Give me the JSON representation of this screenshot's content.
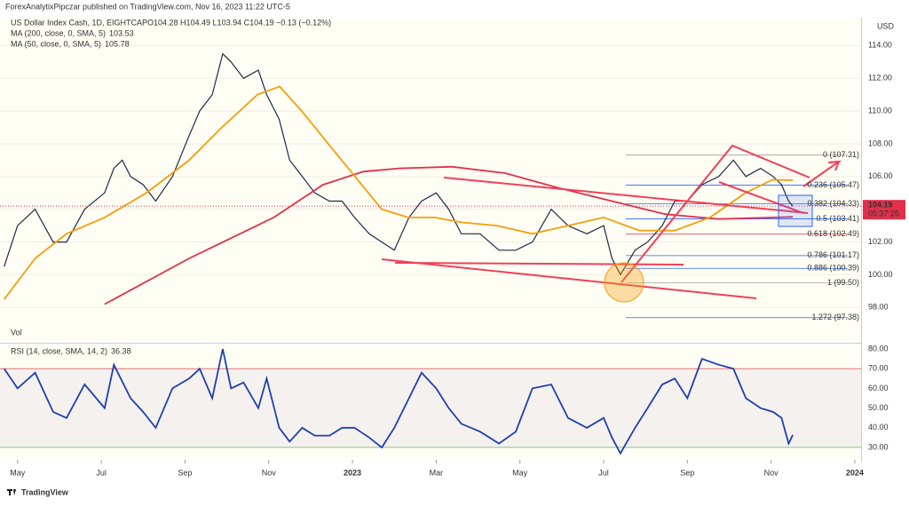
{
  "header": {
    "publisher": "ForexAnalytixPipczar published on TradingView.com, Nov 16, 2023 11:22 UTC-5",
    "symbol": "US Dollar Index Cash, 1D, EIGHTCAP",
    "quote": "O104.28 H104.49 L103.94 C104.19 −0.13 (−0.12%)",
    "currency": "USD",
    "countdown": "05:37:25",
    "volume_label": "Vol",
    "footer": "TradingView"
  },
  "chart_data": [
    {
      "type": "line",
      "x": [
        3.68,
        4.0,
        4.42,
        4.85,
        5.17,
        5.6,
        6.08,
        6.3,
        6.5,
        6.7,
        7.0,
        7.3,
        7.7,
        8.1,
        8.35,
        8.65,
        8.9,
        9.1,
        9.4,
        9.75,
        9.95,
        10.25,
        10.5,
        10.8,
        11.1,
        11.45,
        11.75,
        12.05,
        12.4,
        12.7,
        13.0,
        13.35,
        13.65,
        14.0,
        14.3,
        14.6,
        15.05,
        15.5,
        15.9,
        16.3,
        16.75,
        17.15,
        17.6,
        18.0,
        18.2,
        18.4,
        18.75,
        19.05,
        19.4,
        19.7,
        20.0,
        20.35,
        20.75,
        21.1,
        21.4,
        21.75,
        22.05,
        22.25,
        22.42,
        22.52
      ],
      "series": [
        {
          "name": "US Dollar Index Cash",
          "color": "#1f2a44",
          "values": [
            100.5,
            103,
            104,
            102,
            102,
            104,
            105,
            106.5,
            107,
            106,
            105.5,
            104.5,
            106,
            108.5,
            110,
            111,
            113.5,
            113,
            112,
            112.5,
            111,
            109.5,
            107,
            106,
            105,
            104.5,
            104.5,
            103.5,
            102.5,
            102,
            101.5,
            103.5,
            104.5,
            105,
            104,
            102.5,
            102.5,
            101.5,
            101.5,
            102,
            104,
            103,
            102.5,
            103,
            101,
            100,
            101.5,
            102,
            103,
            104.5,
            104.5,
            105.5,
            106,
            107,
            106,
            106.5,
            106,
            105.5,
            104.5,
            104.19
          ]
        },
        {
          "name": "MA (200, close, 0, SMA, 5)",
          "color": "#e0304a",
          "last": 103.53,
          "x": [
            6.08,
            8.1,
            10.12,
            11.3,
            12.26,
            13.11,
            14.38,
            15.66,
            16.93,
            18.2,
            19.47,
            20.75,
            22.52
          ],
          "values": [
            98.2,
            101,
            103.5,
            105.5,
            106.3,
            106.5,
            106.6,
            106.2,
            105.3,
            104.5,
            103.7,
            103.4,
            103.53
          ]
        },
        {
          "name": "MA (50, close, 0, SMA, 5)",
          "color": "#f59e0b",
          "last": 105.78,
          "x": [
            3.68,
            4.42,
            5.17,
            6.08,
            7.08,
            8.1,
            8.88,
            9.73,
            10.26,
            10.79,
            11.42,
            12.06,
            12.7,
            13.33,
            13.97,
            14.6,
            15.45,
            16.3,
            17.15,
            18.0,
            18.85,
            19.7,
            20.54,
            21.39,
            22.03,
            22.52
          ],
          "values": [
            98.5,
            101,
            102.5,
            103.5,
            105,
            107,
            109,
            111,
            111.5,
            110,
            108,
            106,
            104,
            103.5,
            103.5,
            103.2,
            103,
            102.5,
            103,
            103.5,
            102.7,
            102.7,
            103.5,
            105,
            105.8,
            105.78
          ]
        }
      ],
      "last_price": 104.19,
      "fib_levels": [
        {
          "value": 107.31,
          "label": "0 (107.31)",
          "color": "#9e9e9e"
        },
        {
          "value": 105.47,
          "label": "0.236 (105.47)",
          "color": "#2962ff"
        },
        {
          "value": 104.33,
          "label": "0.382 (104.33)",
          "color": "#2962ff"
        },
        {
          "value": 103.41,
          "label": "0.5 (103.41)",
          "color": "#2962ff"
        },
        {
          "value": 102.49,
          "label": "0.618 (102.49)",
          "color": "#e0304a"
        },
        {
          "value": 101.17,
          "label": "0.786 (101.17)",
          "color": "#2962ff"
        },
        {
          "value": 100.39,
          "label": "0.886 (100.39)",
          "color": "#2962ff"
        },
        {
          "value": 99.5,
          "label": "1 (99.50)",
          "color": "#9e9e9e"
        },
        {
          "value": 97.38,
          "label": "1.272 (97.38)",
          "color": "#2962ff"
        }
      ],
      "xlim": [
        3.58,
        24.15
      ],
      "ylim": [
        95.9,
        115.7
      ],
      "xticks": [
        {
          "value": 4,
          "label": "May"
        },
        {
          "value": 6,
          "label": "Jul"
        },
        {
          "value": 8,
          "label": "Sep"
        },
        {
          "value": 10,
          "label": "Nov"
        },
        {
          "value": 12,
          "label": "2023"
        },
        {
          "value": 14,
          "label": "Mar"
        },
        {
          "value": 16,
          "label": "May"
        },
        {
          "value": 18,
          "label": "Jul"
        },
        {
          "value": 20,
          "label": "Sep"
        },
        {
          "value": 22,
          "label": "Nov"
        },
        {
          "value": 24,
          "label": "2024"
        }
      ],
      "yticks": [
        {
          "value": 98,
          "label": "98.00"
        },
        {
          "value": 100,
          "label": "100.00"
        },
        {
          "value": 102,
          "label": "102.00"
        },
        {
          "value": 104,
          "label": "104.00"
        },
        {
          "value": 106,
          "label": "106.00"
        },
        {
          "value": 108,
          "label": "108.00"
        },
        {
          "value": 110,
          "label": "110.00"
        },
        {
          "value": 112,
          "label": "112.00"
        },
        {
          "value": 114,
          "label": "114.00"
        }
      ]
    },
    {
      "type": "line",
      "series": [
        {
          "name": "RSI (14, close, SMA, 14, 2)",
          "color": "#1e40af",
          "last": 36.38,
          "x": [
            3.68,
            4.0,
            4.42,
            4.85,
            5.17,
            5.6,
            6.08,
            6.3,
            6.7,
            7.0,
            7.3,
            7.7,
            8.1,
            8.35,
            8.65,
            8.9,
            9.1,
            9.4,
            9.75,
            9.95,
            10.25,
            10.5,
            10.8,
            11.1,
            11.45,
            11.75,
            12.05,
            12.4,
            12.7,
            13.0,
            13.35,
            13.65,
            14.0,
            14.3,
            14.6,
            15.05,
            15.5,
            15.9,
            16.3,
            16.75,
            17.15,
            17.6,
            18.0,
            18.2,
            18.4,
            18.75,
            19.05,
            19.4,
            19.7,
            20.0,
            20.35,
            20.75,
            21.1,
            21.4,
            21.75,
            22.05,
            22.25,
            22.42,
            22.52
          ],
          "values": [
            70,
            60,
            68,
            48,
            45,
            62,
            50,
            72,
            55,
            48,
            40,
            60,
            65,
            70,
            55,
            80,
            60,
            63,
            50,
            65,
            40,
            33,
            40,
            36,
            36,
            40,
            40,
            35,
            30,
            40,
            55,
            68,
            60,
            50,
            42,
            38,
            32,
            38,
            60,
            62,
            45,
            40,
            45,
            35,
            27,
            40,
            50,
            62,
            65,
            55,
            75,
            72,
            70,
            55,
            50,
            48,
            45,
            32,
            36.38
          ]
        }
      ],
      "ylim": [
        25,
        82.3
      ],
      "yticks": [
        {
          "value": 30,
          "label": "30.00"
        },
        {
          "value": 40,
          "label": "40.00"
        },
        {
          "value": 50,
          "label": "50.00"
        },
        {
          "value": 60,
          "label": "60.00"
        },
        {
          "value": 70,
          "label": "70.00"
        },
        {
          "value": 80,
          "label": "80.00"
        }
      ],
      "bands": [
        30,
        70
      ]
    }
  ]
}
